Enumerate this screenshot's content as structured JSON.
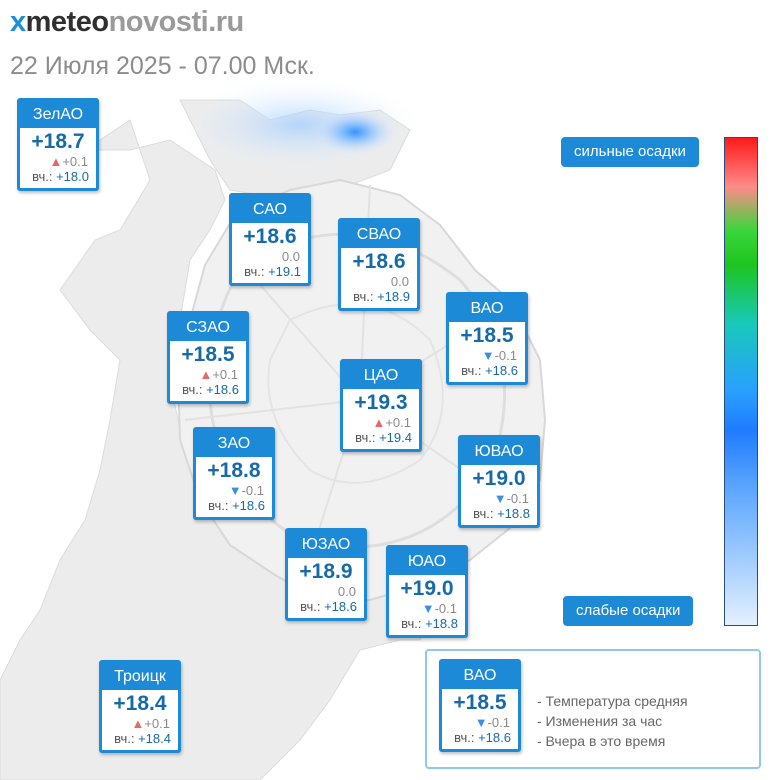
{
  "site": {
    "logo_mark": "х",
    "logo_a": "meteo",
    "logo_b": "novosti",
    "logo_c": ".ru"
  },
  "datetime": "22 Июля 2025 - 07.00 Мск.",
  "yesterday_prefix": "вч.:",
  "districts": [
    {
      "name": "ЗелАО",
      "temp": "+18.7",
      "trend": "up",
      "change": "+0.1",
      "yesterday": "+18.0"
    },
    {
      "name": "САО",
      "temp": "+18.6",
      "trend": "none",
      "change": "0.0",
      "yesterday": "+19.1"
    },
    {
      "name": "СВАО",
      "temp": "+18.6",
      "trend": "none",
      "change": "0.0",
      "yesterday": "+18.9"
    },
    {
      "name": "ВАО",
      "temp": "+18.5",
      "trend": "down",
      "change": "-0.1",
      "yesterday": "+18.6"
    },
    {
      "name": "СЗАО",
      "temp": "+18.5",
      "trend": "up",
      "change": "+0.1",
      "yesterday": "+18.6"
    },
    {
      "name": "ЦАО",
      "temp": "+19.3",
      "trend": "up",
      "change": "+0.1",
      "yesterday": "+19.4"
    },
    {
      "name": "ЗАО",
      "temp": "+18.8",
      "trend": "down",
      "change": "-0.1",
      "yesterday": "+18.6"
    },
    {
      "name": "ЮВАО",
      "temp": "+19.0",
      "trend": "down",
      "change": "-0.1",
      "yesterday": "+18.8"
    },
    {
      "name": "ЮЗАО",
      "temp": "+18.9",
      "trend": "none",
      "change": "0.0",
      "yesterday": "+18.6"
    },
    {
      "name": "ЮАО",
      "temp": "+19.0",
      "trend": "down",
      "change": "-0.1",
      "yesterday": "+18.8"
    },
    {
      "name": "Троицк",
      "temp": "+18.4",
      "trend": "up",
      "change": "+0.1",
      "yesterday": "+18.4"
    }
  ],
  "precip_scale": {
    "top_label": "сильные осадки",
    "bottom_label": "слабые осадки",
    "colors": [
      "#ff1a1a",
      "#3ad63a",
      "#1f7bff",
      "#e3f0ff"
    ]
  },
  "legend": {
    "example": {
      "name": "ВАО",
      "temp": "+18.5",
      "trend": "down",
      "change": "-0.1",
      "yesterday": "+18.6"
    },
    "items": [
      "- Температура средняя",
      "- Изменения за час",
      "- Вчера в это время"
    ]
  },
  "colors": {
    "accent": "#1c8ad6",
    "temp_text": "#176aa8",
    "up_arrow": "#e86868",
    "down_arrow": "#3c8ee0"
  }
}
